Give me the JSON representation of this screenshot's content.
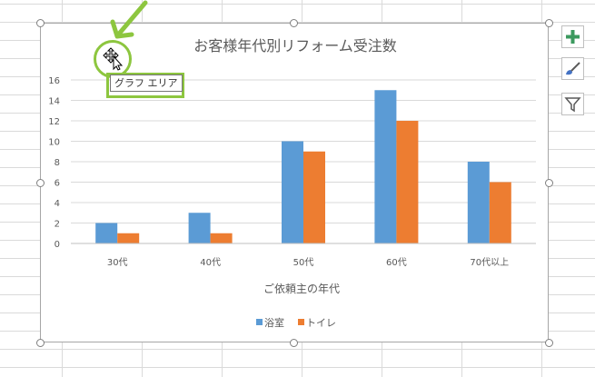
{
  "chart_data": {
    "type": "bar",
    "title": "お客様年代別リフォーム受注数",
    "categories": [
      "30代",
      "40代",
      "50代",
      "60代",
      "70代以上"
    ],
    "series": [
      {
        "name": "浴室",
        "values": [
          2,
          3,
          10,
          15,
          8
        ],
        "color": "#5b9bd5"
      },
      {
        "name": "トイレ",
        "values": [
          1,
          1,
          9,
          12,
          6
        ],
        "color": "#ed7d31"
      }
    ],
    "xlabel": "ご依頼主の年代",
    "ylabel": "",
    "ylim": [
      0,
      16
    ],
    "yticks": [
      0,
      2,
      4,
      6,
      8,
      10,
      12,
      14,
      16
    ],
    "grid": true,
    "legend": "bottom"
  },
  "tooltip": {
    "label": "グラフ エリア"
  },
  "side_buttons": {
    "elements": "chart-elements-plus-icon",
    "styles": "chart-styles-brush-icon",
    "filters": "chart-filter-icon"
  },
  "colors": {
    "highlight": "#8dc63f",
    "plus": "#3c9a5f"
  }
}
